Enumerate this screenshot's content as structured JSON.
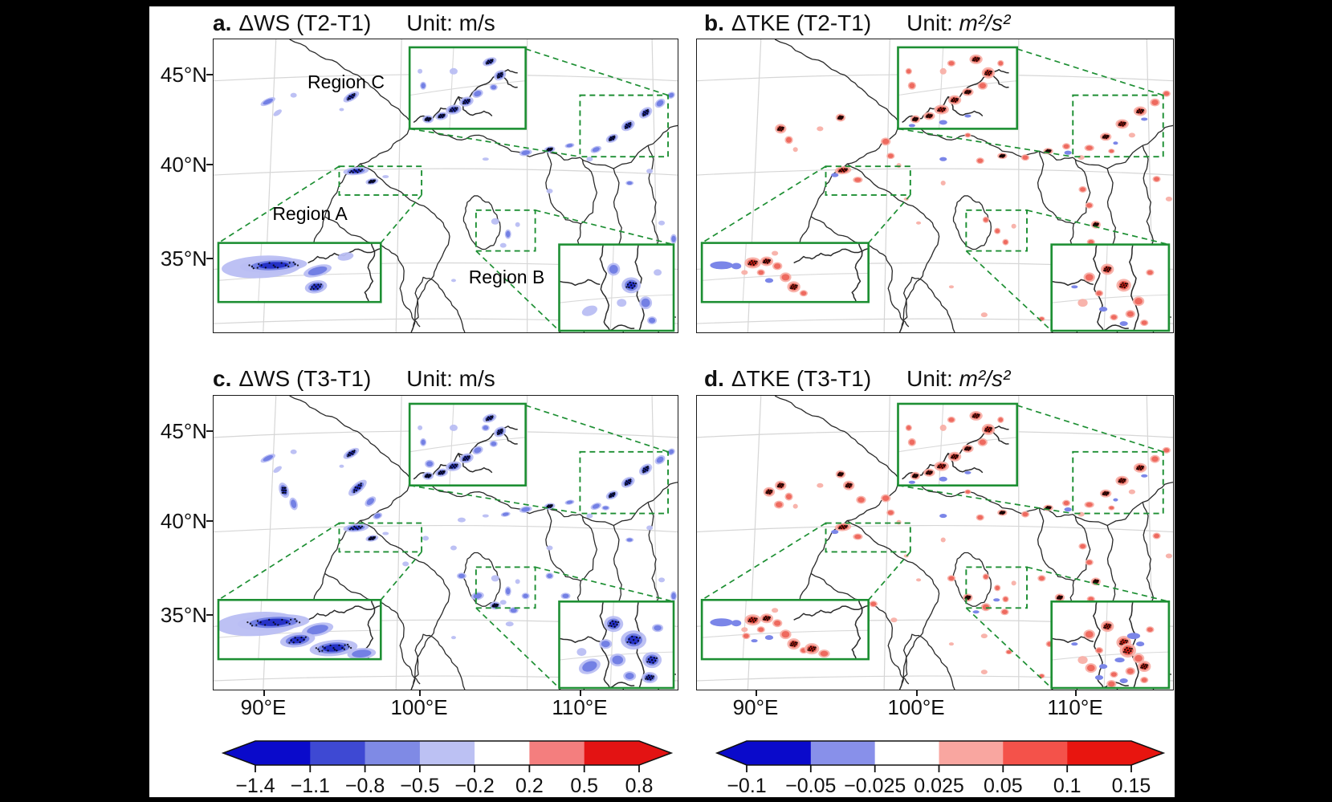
{
  "figure": {
    "background": "#000000",
    "map_background": "#ffffff",
    "inset_box_color": "#1d8f33",
    "border_color": "#2a2a2a",
    "graticule_color": "#d6d6d6"
  },
  "panels": [
    {
      "letter": "a.",
      "name": "ΔWS (T2-T1)",
      "unit_label": "Unit:",
      "unit": "m/s"
    },
    {
      "letter": "b.",
      "name": "ΔTKE (T2-T1)",
      "unit_label": "Unit:",
      "unit": "m²/s²"
    },
    {
      "letter": "c.",
      "name": "ΔWS (T3-T1)",
      "unit_label": "Unit:",
      "unit": "m/s"
    },
    {
      "letter": "d.",
      "name": "ΔTKE (T3-T1)",
      "unit_label": "Unit:",
      "unit": "m²/s²"
    }
  ],
  "axes": {
    "lat_ticks": [
      "45°N",
      "40°N",
      "35°N"
    ],
    "lon_ticks": [
      "90°E",
      "100°E",
      "110°E"
    ]
  },
  "regions": {
    "region_a": "Region A",
    "region_b": "Region B",
    "region_c": "Region C"
  },
  "colorbars": {
    "ws": {
      "ticks": [
        "−1.4",
        "−1.1",
        "−0.8",
        "−0.5",
        "−0.2",
        "0.2",
        "0.5",
        "0.8"
      ],
      "colors": [
        "#0a0acb",
        "#3e49d3",
        "#7f8ae5",
        "#bcc1f3",
        "#ffffff",
        "#f47e7e",
        "#e31313"
      ]
    },
    "tke": {
      "ticks": [
        "−0.1",
        "−0.05",
        "−0.025",
        "0.025",
        "0.05",
        "0.1",
        "0.15"
      ],
      "colors": [
        "#0a0acb",
        "#8890ea",
        "#ffffff",
        "#f9a6a0",
        "#f4524a",
        "#e8150f"
      ]
    }
  },
  "chart_data": {
    "type": "map",
    "title": "Differences in wind speed (ΔWS) and turbulent kinetic energy (ΔTKE) over northern China",
    "panels": [
      {
        "id": "a",
        "variable": "ΔWS",
        "difference": "T2-T1",
        "unit": "m/s",
        "dominant_anomaly": "negative (blue shading)"
      },
      {
        "id": "b",
        "variable": "ΔTKE",
        "difference": "T2-T1",
        "unit": "m²/s²",
        "dominant_anomaly": "positive (red shading)"
      },
      {
        "id": "c",
        "variable": "ΔWS",
        "difference": "T3-T1",
        "unit": "m/s",
        "dominant_anomaly": "negative (blue shading), stronger/wider than panel a"
      },
      {
        "id": "d",
        "variable": "ΔTKE",
        "difference": "T3-T1",
        "unit": "m²/s²",
        "dominant_anomaly": "positive (red shading), stronger/wider than panel b"
      }
    ],
    "lat_ticks_deg_n": [
      45,
      40,
      35
    ],
    "lon_ticks_deg_e": [
      90,
      100,
      110
    ],
    "highlight_regions": [
      "Region A",
      "Region B",
      "Region C"
    ],
    "insets_per_panel": 3,
    "colorbar_ws": {
      "unit": "m/s",
      "bounds": [
        -1.4,
        -1.1,
        -0.8,
        -0.5,
        -0.2,
        0.2,
        0.5,
        0.8
      ],
      "extend": "both"
    },
    "colorbar_tke": {
      "unit": "m²/s²",
      "bounds": [
        -0.1,
        -0.05,
        -0.025,
        0.025,
        0.05,
        0.1,
        0.15
      ],
      "extend": "both"
    }
  }
}
